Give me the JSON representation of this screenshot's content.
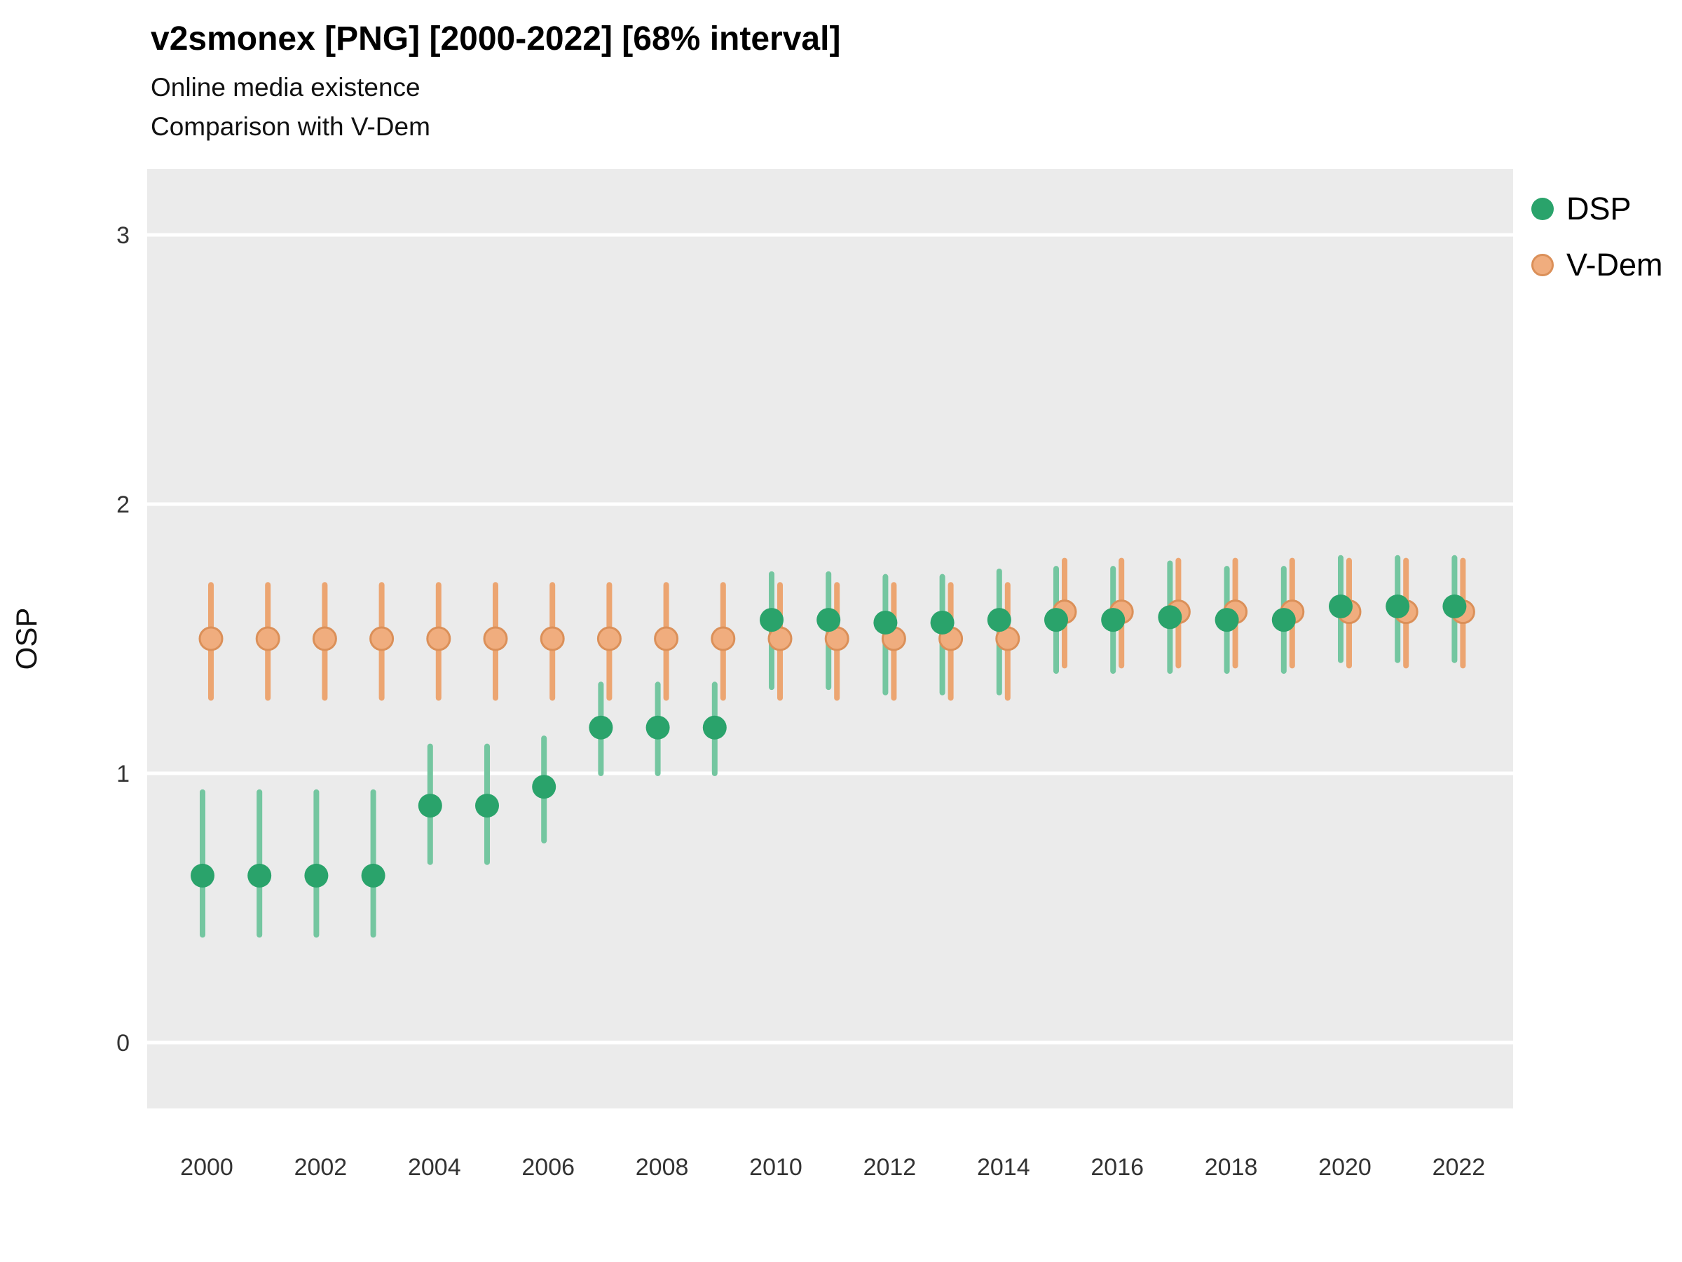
{
  "header": {
    "title": "v2smonex [PNG] [2000-2022] [68% interval]",
    "subtitle1": "Online media existence",
    "subtitle2": "Comparison with V-Dem"
  },
  "legend": {
    "items": [
      {
        "label": "DSP"
      },
      {
        "label": "V-Dem"
      }
    ]
  },
  "colors": {
    "panel": "#ebebeb",
    "grid": "#ffffff",
    "dsp_point": "#2aa36b",
    "dsp_line": "#74c6a0",
    "vdem_point": "#f0ad7e",
    "vdem_stroke": "#db9059",
    "vdem_line": "#eca571",
    "tick_text": "#333333"
  },
  "chart_data": {
    "type": "scatter",
    "title": "v2smonex [PNG] [2000-2022] [68% interval]",
    "subtitle": "Online media existence — Comparison with V-Dem",
    "xlabel": "",
    "ylabel": "OSP",
    "ylim": [
      -0.25,
      3.25
    ],
    "y_ticks": [
      0,
      1,
      2,
      3
    ],
    "x_tick_labels": [
      2000,
      2002,
      2004,
      2006,
      2008,
      2010,
      2012,
      2014,
      2016,
      2018,
      2020,
      2022
    ],
    "years": [
      2000,
      2001,
      2002,
      2003,
      2004,
      2005,
      2006,
      2007,
      2008,
      2009,
      2010,
      2011,
      2012,
      2013,
      2014,
      2015,
      2016,
      2017,
      2018,
      2019,
      2020,
      2021,
      2022
    ],
    "series": [
      {
        "name": "DSP",
        "est": [
          0.62,
          0.62,
          0.62,
          0.62,
          0.88,
          0.88,
          0.95,
          1.17,
          1.17,
          1.17,
          1.57,
          1.57,
          1.56,
          1.56,
          1.57,
          1.57,
          1.57,
          1.58,
          1.57,
          1.57,
          1.62,
          1.62,
          1.62
        ],
        "lo": [
          0.4,
          0.4,
          0.4,
          0.4,
          0.67,
          0.67,
          0.75,
          1.0,
          1.0,
          1.0,
          1.32,
          1.32,
          1.3,
          1.3,
          1.3,
          1.38,
          1.38,
          1.38,
          1.38,
          1.38,
          1.42,
          1.42,
          1.42
        ],
        "hi": [
          0.93,
          0.93,
          0.93,
          0.93,
          1.1,
          1.1,
          1.13,
          1.33,
          1.33,
          1.33,
          1.74,
          1.74,
          1.73,
          1.73,
          1.75,
          1.76,
          1.76,
          1.78,
          1.76,
          1.76,
          1.8,
          1.8,
          1.8
        ]
      },
      {
        "name": "V-Dem",
        "est": [
          1.5,
          1.5,
          1.5,
          1.5,
          1.5,
          1.5,
          1.5,
          1.5,
          1.5,
          1.5,
          1.5,
          1.5,
          1.5,
          1.5,
          1.5,
          1.6,
          1.6,
          1.6,
          1.6,
          1.6,
          1.6,
          1.6,
          1.6
        ],
        "lo": [
          1.28,
          1.28,
          1.28,
          1.28,
          1.28,
          1.28,
          1.28,
          1.28,
          1.28,
          1.28,
          1.28,
          1.28,
          1.28,
          1.28,
          1.28,
          1.4,
          1.4,
          1.4,
          1.4,
          1.4,
          1.4,
          1.4,
          1.4
        ],
        "hi": [
          1.7,
          1.7,
          1.7,
          1.7,
          1.7,
          1.7,
          1.7,
          1.7,
          1.7,
          1.7,
          1.7,
          1.7,
          1.7,
          1.7,
          1.7,
          1.79,
          1.79,
          1.79,
          1.79,
          1.79,
          1.79,
          1.79,
          1.79
        ]
      }
    ],
    "interval_label": "68% interval"
  }
}
